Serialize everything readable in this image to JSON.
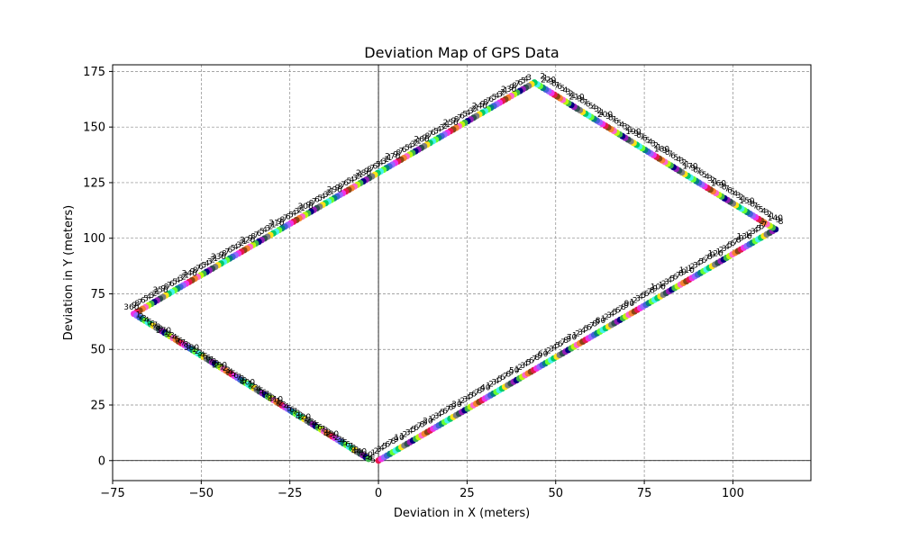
{
  "chart_data": {
    "type": "scatter",
    "title": "Deviation Map of GPS Data",
    "xlabel": "Deviation in X (meters)",
    "ylabel": "Deviation in Y (meters)",
    "xlim": [
      -75,
      122
    ],
    "ylim": [
      -9,
      178
    ],
    "xticks": [
      -75,
      -50,
      -25,
      0,
      25,
      50,
      75,
      100
    ],
    "yticks": [
      0,
      25,
      50,
      75,
      100,
      125,
      150,
      175
    ],
    "xtick_labels": [
      "−75",
      "−50",
      "−25",
      "0",
      "25",
      "50",
      "75",
      "100"
    ],
    "ytick_labels": [
      "0",
      "25",
      "50",
      "75",
      "100",
      "125",
      "150",
      "175"
    ],
    "grid": true,
    "grid_style": "dashed",
    "zero_lines": true,
    "marker_colors": [
      "#e6194b",
      "#3cb44b",
      "#ffe119",
      "#4363d8",
      "#f58231",
      "#911eb4",
      "#46f0f0",
      "#f032e6",
      "#bcf60c",
      "#808080",
      "#008080",
      "#8b4513",
      "#000080",
      "#00cc66",
      "#9966ff",
      "#ff66cc",
      "#2f4f4f",
      "#66ff33"
    ],
    "path_vertices": [
      {
        "x": 0,
        "y": 0
      },
      {
        "x": 112,
        "y": 104
      },
      {
        "x": 44,
        "y": 170
      },
      {
        "x": -69,
        "y": 66
      },
      {
        "x": -2,
        "y": 0
      }
    ],
    "points_per_meter": 0.9,
    "point_labels": "sequence numbers along track"
  }
}
